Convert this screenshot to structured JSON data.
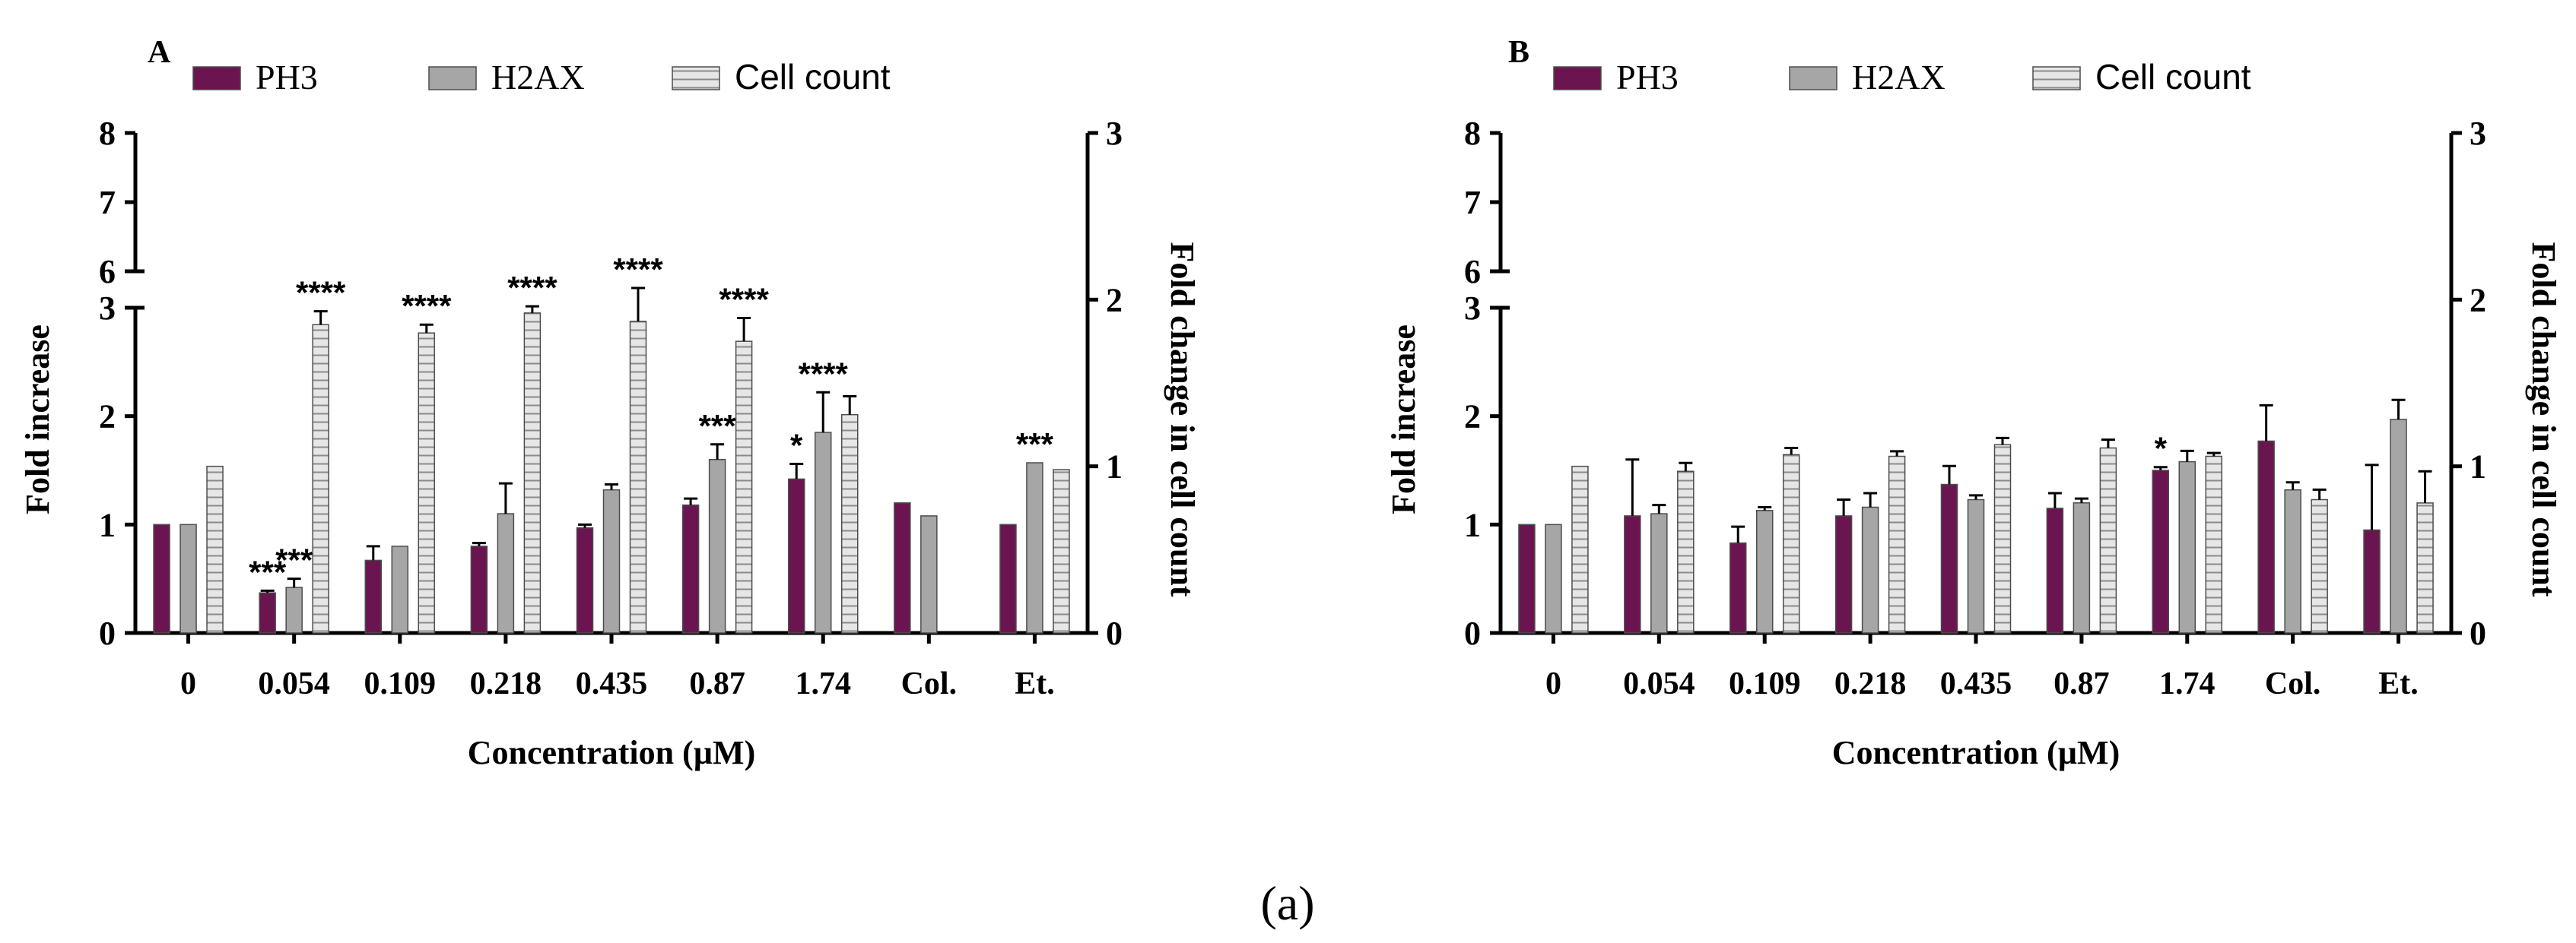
{
  "caption": "(a)",
  "colors": {
    "ph3": "#6b1550",
    "h2ax": "#a6a6a6",
    "cell": "#d9d9d9",
    "axis": "#000000"
  },
  "chart_data": [
    {
      "panel_label": "A",
      "type": "bar",
      "categories": [
        "0",
        "0.054",
        "0.109",
        "0.218",
        "0.435",
        "0.87",
        "1.74",
        "Col.",
        "Et."
      ],
      "xlabel": "Concentration (µM)",
      "ylabel_left": "Fold increase",
      "ylabel_right": "Fold change in cell count",
      "left_axis": {
        "segments": [
          [
            0,
            3
          ],
          [
            6,
            8
          ]
        ],
        "ticks_lower": [
          "0",
          "1",
          "2",
          "3"
        ],
        "ticks_upper": [
          "6",
          "7",
          "8"
        ],
        "break": true
      },
      "right_axis": {
        "range": [
          0,
          3
        ],
        "ticks": [
          "0",
          "1",
          "2",
          "3"
        ]
      },
      "legend": {
        "position": "top-left",
        "entries": [
          "PH3",
          "H2AX",
          "Cell count"
        ]
      },
      "series": [
        {
          "name": "PH3",
          "axis": "left",
          "values": [
            1.0,
            0.37,
            0.67,
            0.8,
            0.97,
            1.18,
            1.42,
            1.2,
            1.0
          ],
          "errors": [
            0,
            0.02,
            0.13,
            0.03,
            0.03,
            0.06,
            0.14,
            0,
            0
          ],
          "marks": [
            "",
            "***",
            "",
            "",
            "",
            "",
            "*",
            "",
            ""
          ]
        },
        {
          "name": "H2AX",
          "axis": "left",
          "values": [
            1.0,
            0.42,
            0.8,
            1.1,
            1.32,
            1.6,
            1.85,
            1.08,
            1.57
          ],
          "errors": [
            0,
            0.08,
            0,
            0.28,
            0.05,
            0.14,
            0.37,
            0,
            0
          ],
          "marks": [
            "",
            "***",
            "",
            "",
            "",
            "***",
            "****",
            "",
            "***"
          ]
        },
        {
          "name": "Cell count",
          "axis": "right",
          "values": [
            1.0,
            1.85,
            1.8,
            1.92,
            1.87,
            1.75,
            1.31,
            null,
            0.98
          ],
          "errors": [
            0,
            0.08,
            0.05,
            0.04,
            0.2,
            0.14,
            0.11,
            0,
            0
          ],
          "marks": [
            "",
            "****",
            "****",
            "****",
            "****",
            "****",
            "",
            "",
            ""
          ]
        }
      ]
    },
    {
      "panel_label": "B",
      "type": "bar",
      "categories": [
        "0",
        "0.054",
        "0.109",
        "0.218",
        "0.435",
        "0.87",
        "1.74",
        "Col.",
        "Et."
      ],
      "xlabel": "Concentration (µM)",
      "ylabel_left": "Fold increase",
      "ylabel_right": "Fold change in cell count",
      "left_axis": {
        "segments": [
          [
            0,
            3
          ],
          [
            6,
            8
          ]
        ],
        "ticks_lower": [
          "0",
          "1",
          "2",
          "3"
        ],
        "ticks_upper": [
          "6",
          "7",
          "8"
        ],
        "break": true
      },
      "right_axis": {
        "range": [
          0,
          3
        ],
        "ticks": [
          "0",
          "1",
          "2",
          "3"
        ]
      },
      "legend": {
        "position": "top-left",
        "entries": [
          "PH3",
          "H2AX",
          "Cell count"
        ]
      },
      "series": [
        {
          "name": "PH3",
          "axis": "left",
          "values": [
            1.0,
            1.08,
            0.83,
            1.08,
            1.37,
            1.15,
            1.5,
            1.77,
            0.95
          ],
          "errors": [
            0,
            0.52,
            0.15,
            0.15,
            0.17,
            0.14,
            0.03,
            0.33,
            0.6
          ],
          "marks": [
            "",
            "",
            "",
            "",
            "",
            "",
            "*",
            "",
            ""
          ]
        },
        {
          "name": "H2AX",
          "axis": "left",
          "values": [
            1.0,
            1.1,
            1.13,
            1.16,
            1.23,
            1.2,
            1.58,
            1.32,
            1.97
          ],
          "errors": [
            0,
            0.08,
            0.03,
            0.13,
            0.04,
            0.04,
            0.1,
            0.07,
            0.18
          ]
        },
        {
          "name": "Cell count",
          "axis": "right",
          "values": [
            1.0,
            0.97,
            1.07,
            1.06,
            1.13,
            1.11,
            1.06,
            0.8,
            0.78
          ],
          "errors": [
            0,
            0.05,
            0.04,
            0.03,
            0.04,
            0.05,
            0.02,
            0.06,
            0.19
          ]
        }
      ]
    }
  ]
}
